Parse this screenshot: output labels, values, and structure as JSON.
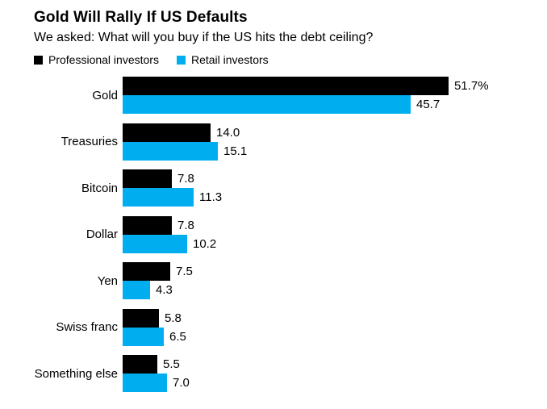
{
  "header": {
    "title": "Gold Will Rally If US Defaults",
    "subtitle": "We asked: What will you buy if the US hits the debt ceiling?"
  },
  "colors": {
    "professional": "#000000",
    "retail": "#00AEEF",
    "background": "#FFFFFF",
    "text": "#000000"
  },
  "chart_data": {
    "type": "bar",
    "orientation": "horizontal",
    "title": "Gold Will Rally If US Defaults",
    "subtitle": "We asked: What will you buy if the US hits the debt ceiling?",
    "categories": [
      "Gold",
      "Treasuries",
      "Bitcoin",
      "Dollar",
      "Yen",
      "Swiss franc",
      "Something else"
    ],
    "series": [
      {
        "name": "Professional investors",
        "color": "#000000",
        "values": [
          51.7,
          14.0,
          7.8,
          7.8,
          7.5,
          5.8,
          5.5
        ],
        "labels": [
          "51.7%",
          "14.0",
          "7.8",
          "7.8",
          "7.5",
          "5.8",
          "5.5"
        ]
      },
      {
        "name": "Retail investors",
        "color": "#00AEEF",
        "values": [
          45.7,
          15.1,
          11.3,
          10.2,
          4.3,
          6.5,
          7.0
        ],
        "labels": [
          "45.7",
          "15.1",
          "11.3",
          "10.2",
          "4.3",
          "6.5",
          "7.0"
        ]
      }
    ],
    "xlim": [
      0,
      51.7
    ],
    "value_unit": "%",
    "legend_position": "top",
    "grid": false,
    "value_labels": "outside-end"
  }
}
